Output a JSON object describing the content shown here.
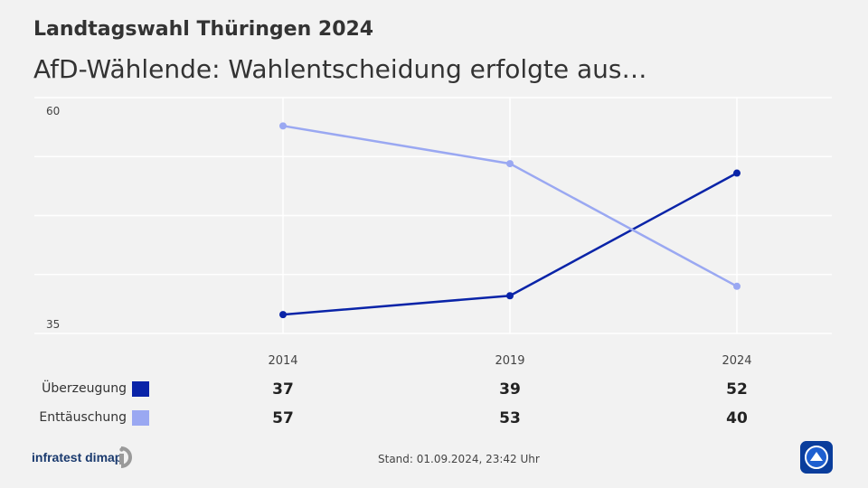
{
  "header": {
    "title": "Landtagswahl Thüringen 2024",
    "subtitle": "AfD-Wählende: Wahlentscheidung erfolgte aus…"
  },
  "chart_data": {
    "type": "line",
    "x": [
      "2014",
      "2019",
      "2024"
    ],
    "ylim": [
      35,
      60
    ],
    "y_tick_labels": [
      "60",
      "35"
    ],
    "grid": true,
    "series": [
      {
        "name": "Überzeugung",
        "color": "#0a24a8",
        "values": [
          37,
          39,
          52
        ]
      },
      {
        "name": "Enttäuschung",
        "color": "#9aa8f2",
        "values": [
          57,
          53,
          40
        ]
      }
    ]
  },
  "table": {
    "columns": [
      "2014",
      "2019",
      "2024"
    ],
    "rows": [
      {
        "label": "Überzeugung",
        "values": [
          "37",
          "39",
          "52"
        ]
      },
      {
        "label": "Enttäuschung",
        "values": [
          "57",
          "53",
          "40"
        ]
      }
    ]
  },
  "footer": {
    "source": "infratest dimap",
    "stand": "Stand:  01.09.2024, 23:42 Uhr",
    "logo_icon": "broadcaster-logo-icon"
  }
}
